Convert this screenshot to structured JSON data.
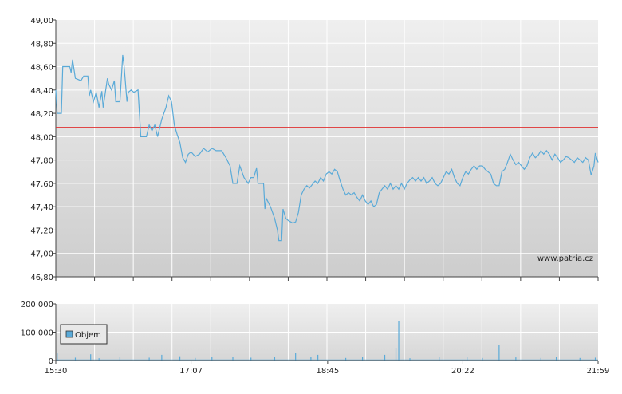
{
  "watermark": "www.patria.cz",
  "chart_data": [
    {
      "type": "line",
      "title": "",
      "xlabel": "",
      "ylabel": "",
      "ylim": [
        46.8,
        49.0
      ],
      "xlim": [
        "15:30",
        "21:59"
      ],
      "ytick_labels": [
        "49,00",
        "48,80",
        "48,60",
        "48,40",
        "48,20",
        "48,00",
        "47,80",
        "47,60",
        "47,40",
        "47,20",
        "47,00",
        "46,80"
      ],
      "grid": true,
      "reference_line": {
        "value": 48.08,
        "color": "#e03030"
      },
      "series": [
        {
          "color": "#5aaad8",
          "points": [
            [
              "15:30",
              48.4
            ],
            [
              "15:31",
              48.2
            ],
            [
              "15:34",
              48.2
            ],
            [
              "15:35",
              48.6
            ],
            [
              "15:40",
              48.6
            ],
            [
              "15:41",
              48.55
            ],
            [
              "15:42",
              48.66
            ],
            [
              "15:44",
              48.5
            ],
            [
              "15:48",
              48.48
            ],
            [
              "15:50",
              48.52
            ],
            [
              "15:53",
              48.52
            ],
            [
              "15:54",
              48.35
            ],
            [
              "15:55",
              48.4
            ],
            [
              "15:57",
              48.3
            ],
            [
              "15:59",
              48.38
            ],
            [
              "16:01",
              48.25
            ],
            [
              "16:03",
              48.39
            ],
            [
              "16:04",
              48.25
            ],
            [
              "16:07",
              48.5
            ],
            [
              "16:08",
              48.45
            ],
            [
              "16:10",
              48.4
            ],
            [
              "16:12",
              48.48
            ],
            [
              "16:13",
              48.3
            ],
            [
              "16:16",
              48.3
            ],
            [
              "16:18",
              48.7
            ],
            [
              "16:19",
              48.6
            ],
            [
              "16:21",
              48.3
            ],
            [
              "16:22",
              48.38
            ],
            [
              "16:24",
              48.4
            ],
            [
              "16:26",
              48.38
            ],
            [
              "16:29",
              48.4
            ],
            [
              "16:31",
              48.0
            ],
            [
              "16:35",
              48.0
            ],
            [
              "16:37",
              48.1
            ],
            [
              "16:39",
              48.05
            ],
            [
              "16:41",
              48.1
            ],
            [
              "16:43",
              48.0
            ],
            [
              "16:46",
              48.15
            ],
            [
              "16:49",
              48.25
            ],
            [
              "16:51",
              48.35
            ],
            [
              "16:53",
              48.3
            ],
            [
              "16:55",
              48.1
            ],
            [
              "16:57",
              48.02
            ],
            [
              "16:59",
              47.95
            ],
            [
              "17:01",
              47.82
            ],
            [
              "17:03",
              47.78
            ],
            [
              "17:05",
              47.85
            ],
            [
              "17:07",
              47.87
            ],
            [
              "17:10",
              47.83
            ],
            [
              "17:13",
              47.85
            ],
            [
              "17:16",
              47.9
            ],
            [
              "17:19",
              47.87
            ],
            [
              "17:22",
              47.9
            ],
            [
              "17:25",
              47.88
            ],
            [
              "17:29",
              47.88
            ],
            [
              "17:32",
              47.82
            ],
            [
              "17:35",
              47.75
            ],
            [
              "17:37",
              47.6
            ],
            [
              "17:40",
              47.6
            ],
            [
              "17:42",
              47.75
            ],
            [
              "17:45",
              47.65
            ],
            [
              "17:48",
              47.6
            ],
            [
              "17:50",
              47.65
            ],
            [
              "17:52",
              47.65
            ],
            [
              "17:54",
              47.73
            ],
            [
              "17:55",
              47.6
            ],
            [
              "17:57",
              47.6
            ],
            [
              "17:59",
              47.6
            ],
            [
              "18:00",
              47.38
            ],
            [
              "18:01",
              47.47
            ],
            [
              "18:04",
              47.4
            ],
            [
              "18:07",
              47.3
            ],
            [
              "18:09",
              47.2
            ],
            [
              "18:10",
              47.11
            ],
            [
              "18:12",
              47.11
            ],
            [
              "18:13",
              47.38
            ],
            [
              "18:15",
              47.3
            ],
            [
              "18:17",
              47.28
            ],
            [
              "18:20",
              47.26
            ],
            [
              "18:22",
              47.27
            ],
            [
              "18:24",
              47.35
            ],
            [
              "18:26",
              47.5
            ],
            [
              "18:28",
              47.55
            ],
            [
              "18:30",
              47.58
            ],
            [
              "18:32",
              47.56
            ],
            [
              "18:34",
              47.59
            ],
            [
              "18:36",
              47.62
            ],
            [
              "18:38",
              47.6
            ],
            [
              "18:40",
              47.65
            ],
            [
              "18:42",
              47.62
            ],
            [
              "18:44",
              47.68
            ],
            [
              "18:46",
              47.7
            ],
            [
              "18:48",
              47.68
            ],
            [
              "18:50",
              47.72
            ],
            [
              "18:52",
              47.7
            ],
            [
              "18:54",
              47.62
            ],
            [
              "18:56",
              47.55
            ],
            [
              "18:58",
              47.5
            ],
            [
              "19:00",
              47.52
            ],
            [
              "19:02",
              47.5
            ],
            [
              "19:04",
              47.52
            ],
            [
              "19:06",
              47.48
            ],
            [
              "19:08",
              47.45
            ],
            [
              "19:10",
              47.5
            ],
            [
              "19:12",
              47.45
            ],
            [
              "19:14",
              47.42
            ],
            [
              "19:16",
              47.45
            ],
            [
              "19:18",
              47.4
            ],
            [
              "19:20",
              47.42
            ],
            [
              "19:22",
              47.52
            ],
            [
              "19:24",
              47.55
            ],
            [
              "19:26",
              47.58
            ],
            [
              "19:28",
              47.55
            ],
            [
              "19:30",
              47.6
            ],
            [
              "19:32",
              47.55
            ],
            [
              "19:34",
              47.58
            ],
            [
              "19:36",
              47.55
            ],
            [
              "19:38",
              47.6
            ],
            [
              "19:40",
              47.55
            ],
            [
              "19:42",
              47.6
            ],
            [
              "19:44",
              47.63
            ],
            [
              "19:46",
              47.65
            ],
            [
              "19:48",
              47.62
            ],
            [
              "19:50",
              47.65
            ],
            [
              "19:52",
              47.62
            ],
            [
              "19:54",
              47.65
            ],
            [
              "19:56",
              47.6
            ],
            [
              "19:58",
              47.62
            ],
            [
              "20:00",
              47.65
            ],
            [
              "20:02",
              47.6
            ],
            [
              "20:04",
              47.58
            ],
            [
              "20:06",
              47.6
            ],
            [
              "20:08",
              47.65
            ],
            [
              "20:10",
              47.7
            ],
            [
              "20:12",
              47.68
            ],
            [
              "20:14",
              47.72
            ],
            [
              "20:16",
              47.65
            ],
            [
              "20:18",
              47.6
            ],
            [
              "20:20",
              47.58
            ],
            [
              "20:22",
              47.65
            ],
            [
              "20:24",
              47.7
            ],
            [
              "20:26",
              47.68
            ],
            [
              "20:28",
              47.72
            ],
            [
              "20:30",
              47.75
            ],
            [
              "20:32",
              47.72
            ],
            [
              "20:34",
              47.75
            ],
            [
              "20:36",
              47.75
            ],
            [
              "20:38",
              47.72
            ],
            [
              "20:40",
              47.7
            ],
            [
              "20:42",
              47.68
            ],
            [
              "20:44",
              47.6
            ],
            [
              "20:46",
              47.58
            ],
            [
              "20:48",
              47.58
            ],
            [
              "20:50",
              47.7
            ],
            [
              "20:52",
              47.72
            ],
            [
              "20:54",
              47.78
            ],
            [
              "20:56",
              47.85
            ],
            [
              "20:58",
              47.8
            ],
            [
              "21:00",
              47.76
            ],
            [
              "21:02",
              47.78
            ],
            [
              "21:04",
              47.75
            ],
            [
              "21:06",
              47.72
            ],
            [
              "21:08",
              47.75
            ],
            [
              "21:10",
              47.82
            ],
            [
              "21:12",
              47.86
            ],
            [
              "21:14",
              47.82
            ],
            [
              "21:16",
              47.84
            ],
            [
              "21:18",
              47.88
            ],
            [
              "21:20",
              47.85
            ],
            [
              "21:22",
              47.88
            ],
            [
              "21:24",
              47.85
            ],
            [
              "21:26",
              47.8
            ],
            [
              "21:28",
              47.85
            ],
            [
              "21:30",
              47.82
            ],
            [
              "21:32",
              47.78
            ],
            [
              "21:34",
              47.8
            ],
            [
              "21:36",
              47.83
            ],
            [
              "21:38",
              47.82
            ],
            [
              "21:40",
              47.8
            ],
            [
              "21:42",
              47.78
            ],
            [
              "21:44",
              47.82
            ],
            [
              "21:46",
              47.8
            ],
            [
              "21:48",
              47.78
            ],
            [
              "21:50",
              47.82
            ],
            [
              "21:52",
              47.8
            ],
            [
              "21:54",
              47.67
            ],
            [
              "21:56",
              47.75
            ],
            [
              "21:57",
              47.86
            ],
            [
              "21:59",
              47.78
            ]
          ]
        }
      ]
    },
    {
      "type": "bar",
      "title": "",
      "xlabel": "",
      "ylabel": "",
      "ylim": [
        0,
        200000
      ],
      "ytick_labels": [
        "200 000",
        "100 000",
        "0"
      ],
      "xtick_labels": [
        "15:30",
        "17:07",
        "18:45",
        "20:22",
        "21:59"
      ],
      "xlim": [
        "15:30",
        "21:59"
      ],
      "grid": true,
      "legend": {
        "position": "left",
        "entries": [
          "Objem"
        ]
      },
      "series": [
        {
          "name": "Objem",
          "color": "#5aaad8",
          "spikes": [
            [
              "15:31",
              25000
            ],
            [
              "15:44",
              10000
            ],
            [
              "15:55",
              22000
            ],
            [
              "16:01",
              8000
            ],
            [
              "16:16",
              12000
            ],
            [
              "16:37",
              10000
            ],
            [
              "16:46",
              20000
            ],
            [
              "16:59",
              15000
            ],
            [
              "17:10",
              9000
            ],
            [
              "17:22",
              12000
            ],
            [
              "17:37",
              13000
            ],
            [
              "17:50",
              10000
            ],
            [
              "18:07",
              13000
            ],
            [
              "18:22",
              26000
            ],
            [
              "18:33",
              12000
            ],
            [
              "18:38",
              20000
            ],
            [
              "18:58",
              9000
            ],
            [
              "19:10",
              14000
            ],
            [
              "19:26",
              20000
            ],
            [
              "19:34",
              45000
            ],
            [
              "19:36",
              140000
            ],
            [
              "19:44",
              8000
            ],
            [
              "20:05",
              14000
            ],
            [
              "20:25",
              11000
            ],
            [
              "20:36",
              9000
            ],
            [
              "20:48",
              55000
            ],
            [
              "21:00",
              11000
            ],
            [
              "21:18",
              9000
            ],
            [
              "21:29",
              12000
            ],
            [
              "21:46",
              9000
            ],
            [
              "21:57",
              10000
            ]
          ],
          "baseline": 4000
        }
      ]
    }
  ]
}
